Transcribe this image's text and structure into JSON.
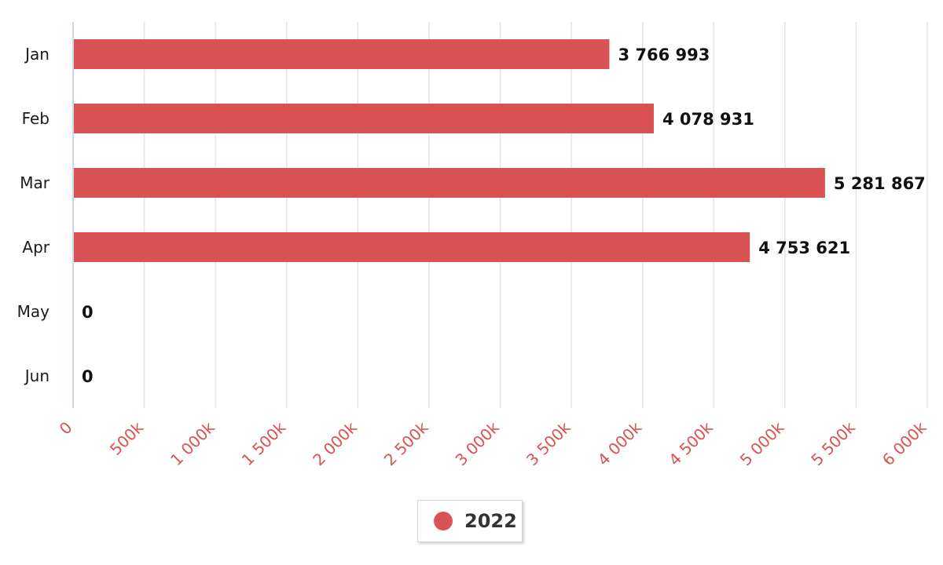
{
  "chart_data": {
    "type": "bar",
    "orientation": "horizontal",
    "categories": [
      "Jan",
      "Feb",
      "Mar",
      "Apr",
      "May",
      "Jun"
    ],
    "series": [
      {
        "name": "2022",
        "values": [
          3766993,
          4078931,
          5281867,
          4753621,
          0,
          0
        ],
        "data_labels": [
          "3 766 993",
          "4 078 931",
          "5 281 867",
          "4 753 621",
          "0",
          "0"
        ]
      }
    ],
    "xlim": [
      0,
      6000000
    ],
    "x_ticks": [
      0,
      500000,
      1000000,
      1500000,
      2000000,
      2500000,
      3000000,
      3500000,
      4000000,
      4500000,
      5000000,
      5500000,
      6000000
    ],
    "x_tick_labels": [
      "0",
      "500k",
      "1 000k",
      "1 500k",
      "2 000k",
      "2 500k",
      "3 000k",
      "3 500k",
      "4 000k",
      "4 500k",
      "5 000k",
      "5 500k",
      "6 000k"
    ],
    "grid": true,
    "legend_position": "bottom-center",
    "colors": {
      "bar": "#d95355",
      "tick_label": "#d95355",
      "grid": "#e3e3e3",
      "axis": "#ccd6eb"
    }
  },
  "legend": {
    "label": "2022"
  }
}
